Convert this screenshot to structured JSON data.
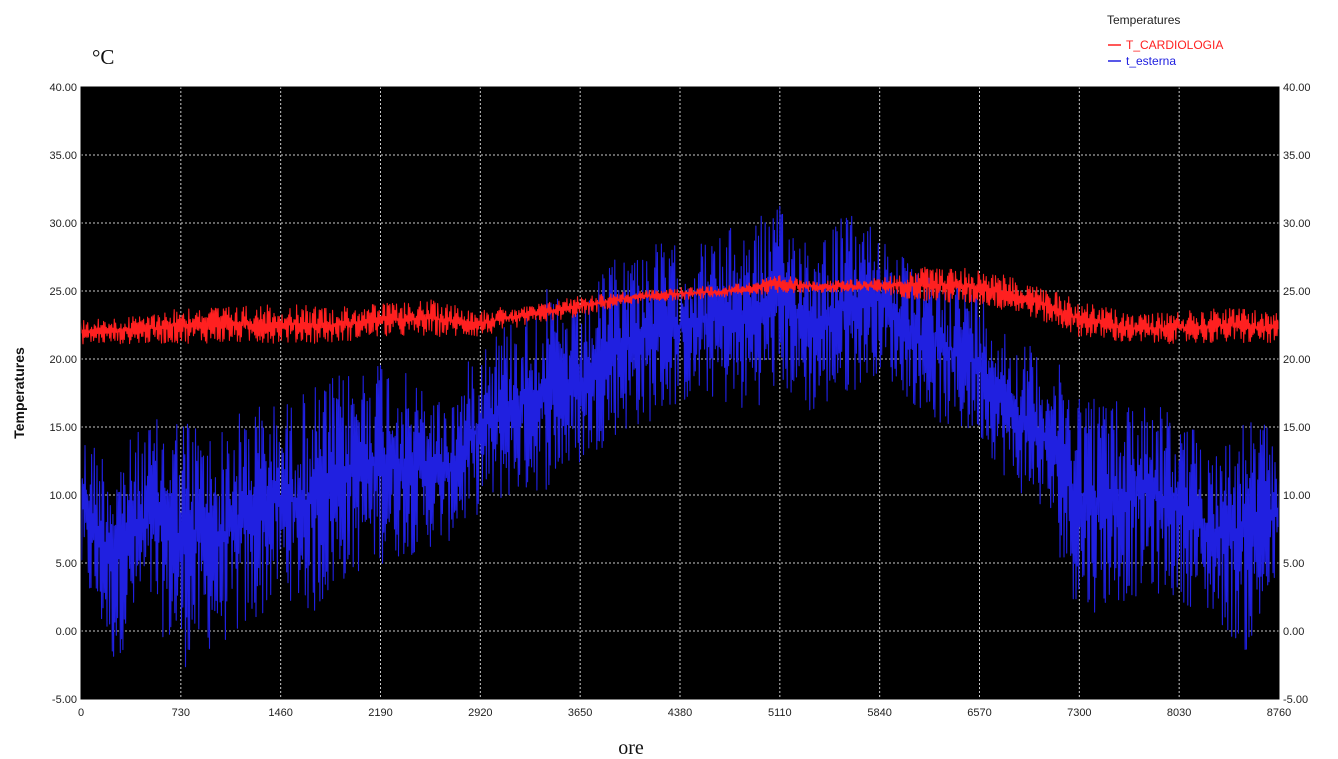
{
  "chart_data": {
    "type": "line",
    "ylabel": "Temperatures",
    "unit_label": "°C",
    "xlabel": "ore",
    "xlim": [
      0,
      8760
    ],
    "ylim": [
      -5,
      40
    ],
    "x_ticks": [
      "0",
      "730",
      "1460",
      "2190",
      "2920",
      "3650",
      "4380",
      "5110",
      "5840",
      "6570",
      "7300",
      "8030",
      "8760"
    ],
    "y_ticks": [
      "-5.00",
      "0.00",
      "5.00",
      "10.00",
      "15.00",
      "20.00",
      "25.00",
      "30.00",
      "35.00",
      "40.00"
    ],
    "grid": true,
    "legend": {
      "title": "Temperatures",
      "placement": "top-right"
    },
    "background_color": "#000000",
    "grid_color": "#c8c8c8",
    "series": [
      {
        "name": "T_CARDIOLOGIA",
        "color": "#ff2020",
        "x": [
          0,
          365,
          730,
          1095,
          1460,
          1825,
          2190,
          2555,
          2920,
          3285,
          3650,
          4015,
          4380,
          4745,
          5110,
          5475,
          5840,
          6205,
          6570,
          6935,
          7300,
          7665,
          8030,
          8395,
          8760
        ],
        "min": [
          21.0,
          21.0,
          21.0,
          21.0,
          21.0,
          21.0,
          21.5,
          21.5,
          21.5,
          22.5,
          23.0,
          24.0,
          24.3,
          24.5,
          24.8,
          24.8,
          24.8,
          24.0,
          23.8,
          23.0,
          21.5,
          21.0,
          21.0,
          21.0,
          21.0
        ],
        "max": [
          23.0,
          23.2,
          24.0,
          24.0,
          24.2,
          24.0,
          24.2,
          24.5,
          23.8,
          24.0,
          24.8,
          25.0,
          25.3,
          25.5,
          26.2,
          25.8,
          26.0,
          27.0,
          26.8,
          25.8,
          24.5,
          23.5,
          23.6,
          24.0,
          23.5
        ]
      },
      {
        "name": "t_esterna",
        "color": "#2020e0",
        "x": [
          0,
          240,
          480,
          730,
          1000,
          1250,
          1460,
          1700,
          1950,
          2190,
          2450,
          2700,
          2920,
          3150,
          3400,
          3650,
          3900,
          4150,
          4380,
          4600,
          4850,
          5110,
          5350,
          5600,
          5840,
          6100,
          6350,
          6570,
          6800,
          7050,
          7300,
          7550,
          7800,
          8030,
          8300,
          8550,
          8760
        ],
        "min": [
          3.0,
          -3.5,
          1.0,
          -4.0,
          -2.0,
          -1.0,
          2.0,
          0.0,
          3.0,
          4.0,
          5.0,
          6.0,
          8.0,
          9.0,
          9.5,
          11.5,
          13.5,
          14.5,
          16.0,
          16.5,
          15.0,
          17.0,
          15.0,
          16.5,
          18.5,
          16.0,
          14.0,
          13.5,
          10.0,
          8.0,
          0.0,
          1.0,
          2.0,
          1.5,
          0.0,
          -3.0,
          3.0
        ],
        "max": [
          15.5,
          14.0,
          16.0,
          17.5,
          15.5,
          18.0,
          17.5,
          19.0,
          20.0,
          21.5,
          19.0,
          17.5,
          22.5,
          24.0,
          26.0,
          24.0,
          28.5,
          29.5,
          29.0,
          29.5,
          31.0,
          32.0,
          30.0,
          31.5,
          30.5,
          27.0,
          27.5,
          26.0,
          22.5,
          21.0,
          19.5,
          18.0,
          18.5,
          16.5,
          14.5,
          17.0,
          15.0
        ]
      }
    ]
  }
}
